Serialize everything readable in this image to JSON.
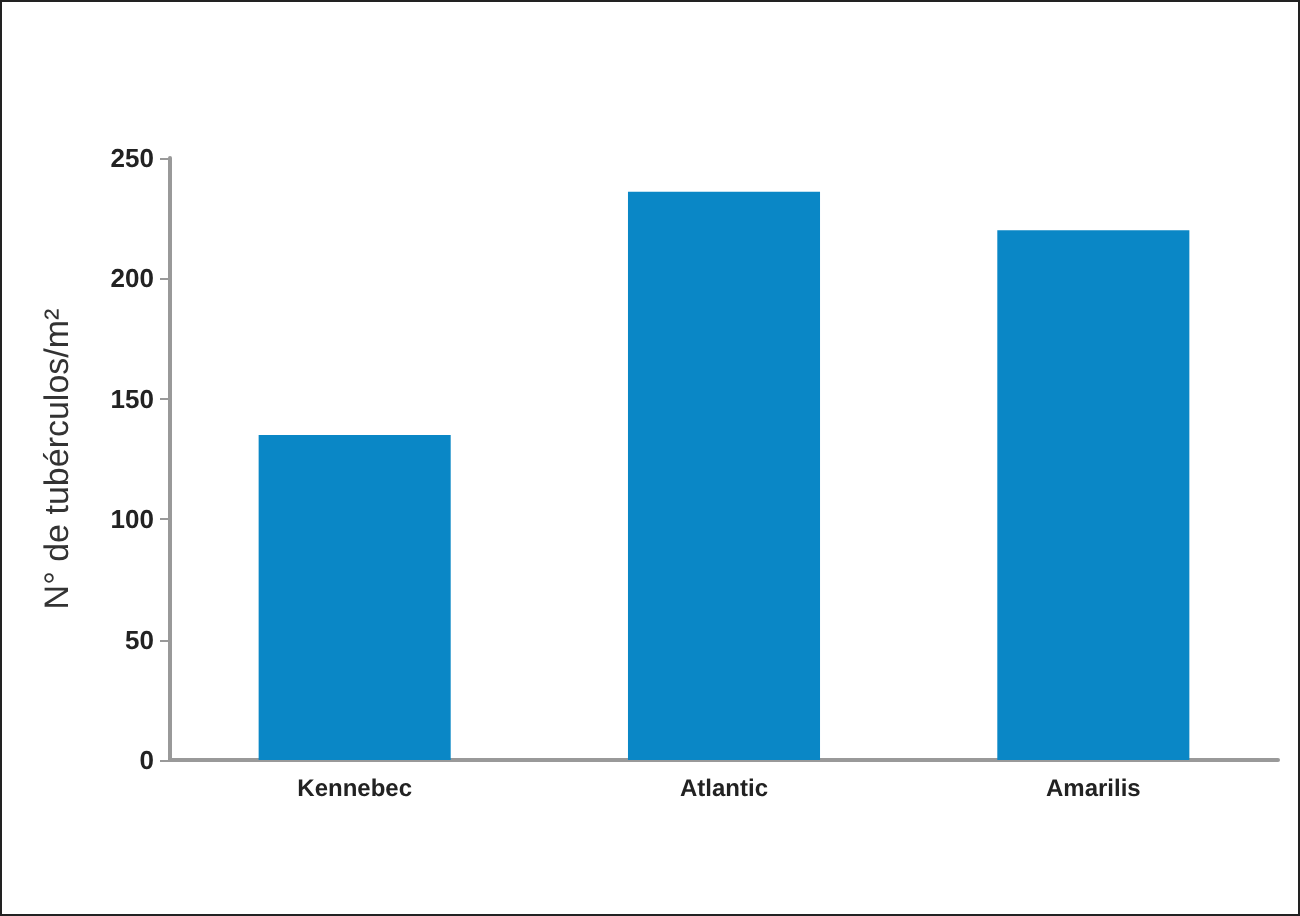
{
  "chart_data": {
    "type": "bar",
    "ylabel": "N° de tubérculos/m²",
    "categories": [
      "Kennebec",
      "Atlantic",
      "Amarilis"
    ],
    "values": [
      135,
      236,
      220
    ],
    "color": "#0a87c6",
    "ylim": [
      0,
      250
    ],
    "yticks": [
      0,
      50,
      100,
      150,
      200,
      250
    ],
    "grid": false
  }
}
